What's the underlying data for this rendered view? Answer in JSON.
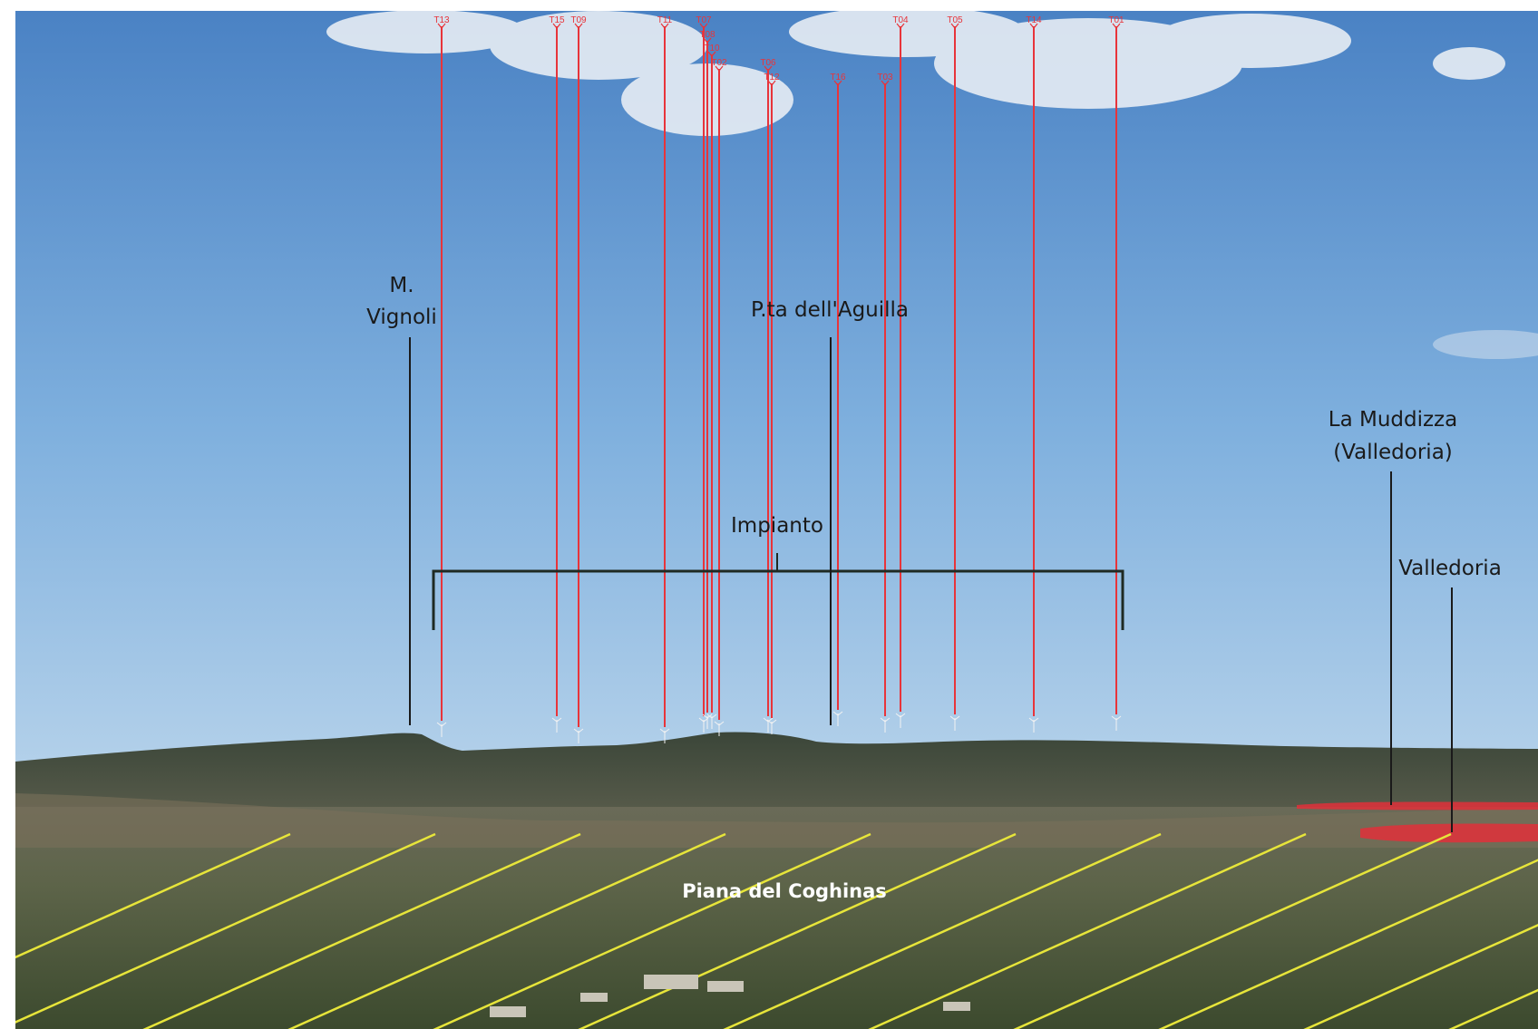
{
  "colors": {
    "sky_top": "#4f86c6",
    "sky_bottom": "#a9c9e4",
    "turbine_marker": "#e8343a",
    "bracket": "#1f2a23",
    "leader_line": "#1a1a1a",
    "plain_hatch": "#e7e53a",
    "settlement_area": "#e0303a",
    "hills": "#3f4a3c",
    "plain": "#5a6448"
  },
  "labels": {
    "vignoli_line1": "M.",
    "vignoli_line2": "Vignoli",
    "aguilla": "P.ta dell'Aguilla",
    "impianto": "Impianto",
    "muddizza_line1": "La Muddizza",
    "muddizza_line2": "(Valledoria)",
    "valledoria": "Valledoria",
    "piana": "Piana del Coghinas"
  },
  "turbines": [
    {
      "id": "T13",
      "label": "T13"
    },
    {
      "id": "T15",
      "label": "T15"
    },
    {
      "id": "T09",
      "label": "T09"
    },
    {
      "id": "T11",
      "label": "T11"
    },
    {
      "id": "T07",
      "label": "T07"
    },
    {
      "id": "T08",
      "label": "T08"
    },
    {
      "id": "T10",
      "label": "T10"
    },
    {
      "id": "T02",
      "label": "T02"
    },
    {
      "id": "T06",
      "label": "T06"
    },
    {
      "id": "T12",
      "label": "T12"
    },
    {
      "id": "T16",
      "label": "T16"
    },
    {
      "id": "T03",
      "label": "T03"
    },
    {
      "id": "T04",
      "label": "T04"
    },
    {
      "id": "T05",
      "label": "T05"
    },
    {
      "id": "T14",
      "label": "T14"
    },
    {
      "id": "T01",
      "label": "T01"
    }
  ]
}
